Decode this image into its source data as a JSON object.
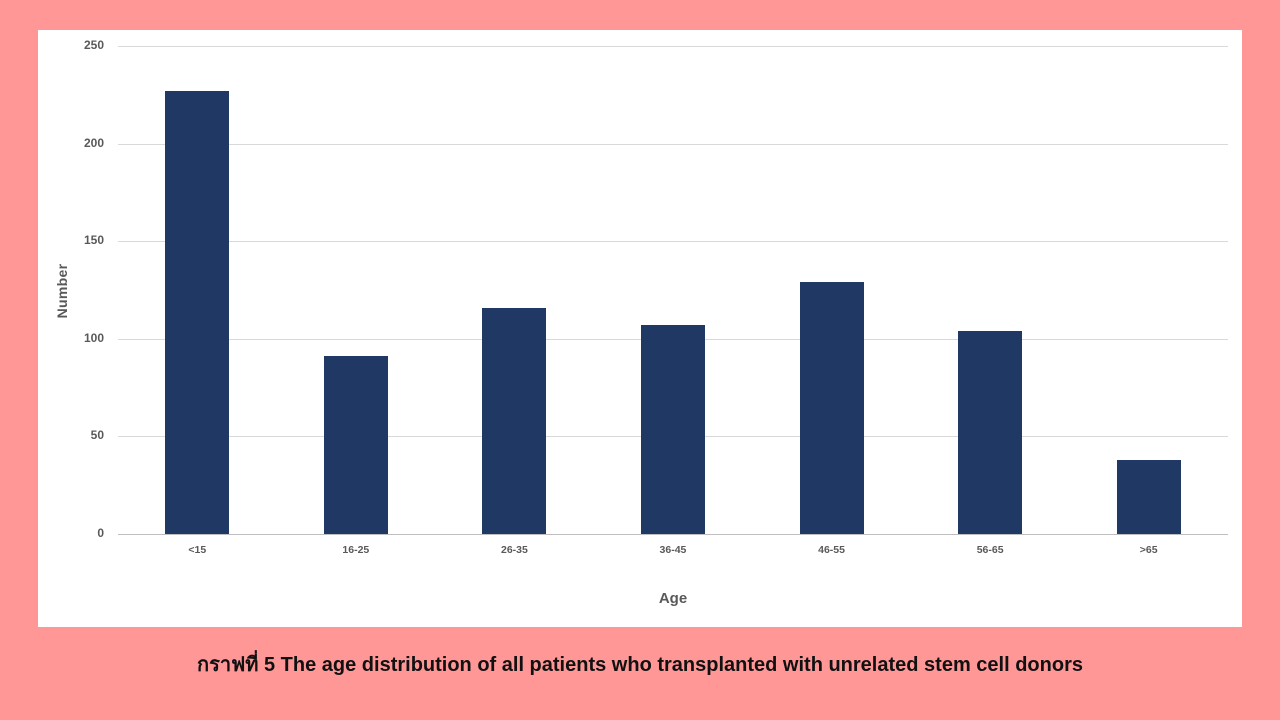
{
  "page": {
    "background_color": "#FF9797",
    "caption": "กราฟที่ 5 The age distribution of all patients who transplanted with unrelated stem cell donors"
  },
  "chart_data": {
    "type": "bar",
    "title": "",
    "categories": [
      "<15",
      "16-25",
      "26-35",
      "36-45",
      "46-55",
      "56-65",
      ">65"
    ],
    "values": [
      227,
      91,
      116,
      107,
      129,
      104,
      38
    ],
    "xlabel": "Age",
    "ylabel": "Number",
    "ylim": [
      0,
      250
    ],
    "yticks": [
      0,
      50,
      100,
      150,
      200,
      250
    ],
    "grid": true,
    "legend_position": "none",
    "bar_color": "#203864",
    "plot_background": "#FFFFFF",
    "gridline_color": "#D9D9D9",
    "axis_text_color": "#595959",
    "caption_text_color": "#111111"
  }
}
